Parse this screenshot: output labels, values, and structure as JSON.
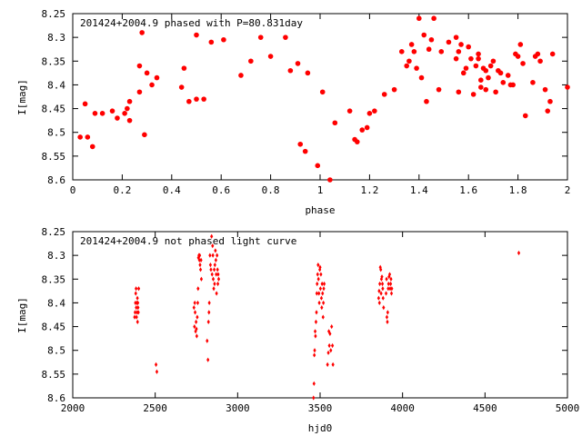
{
  "chart_data": [
    {
      "type": "scatter",
      "title": "201424+2004.9 phased with P=80.831day",
      "xlabel": "phase",
      "ylabel": "I[mag]",
      "xlim": [
        0,
        2
      ],
      "ylim": [
        8.25,
        8.6
      ],
      "y_inverted": true,
      "grid": false,
      "marker": "filled circle",
      "color": "#ff0000",
      "xticks": [
        "0",
        "0.2",
        "0.4",
        "0.6",
        "0.8",
        "1",
        "1.2",
        "1.4",
        "1.6",
        "1.8",
        "2"
      ],
      "yticks": [
        "8.25",
        "8.3",
        "8.35",
        "8.4",
        "8.45",
        "8.5",
        "8.55",
        "8.6"
      ],
      "series": [
        {
          "x": [
            0.03,
            0.05,
            0.06,
            0.08,
            0.09,
            0.12,
            0.16,
            0.18,
            0.21,
            0.22,
            0.23,
            0.23,
            0.27,
            0.27,
            0.28,
            0.29,
            0.3,
            0.32,
            0.34,
            0.44,
            0.45,
            0.47,
            0.5,
            0.5,
            0.53,
            0.56,
            0.61,
            0.68,
            0.72,
            0.76,
            0.8,
            0.86,
            0.88,
            0.91,
            0.92,
            0.94,
            0.95,
            0.99,
            1.01,
            1.04,
            1.06,
            1.12,
            1.14,
            1.15,
            1.17,
            1.19,
            1.2,
            1.22,
            1.26,
            1.3,
            1.33,
            1.35,
            1.36,
            1.37,
            1.38,
            1.39,
            1.4,
            1.41,
            1.42,
            1.43,
            1.44,
            1.45,
            1.46,
            1.48,
            1.49,
            1.52,
            1.55,
            1.55,
            1.56,
            1.56,
            1.57,
            1.58,
            1.59,
            1.6,
            1.61,
            1.62,
            1.63,
            1.64,
            1.64,
            1.65,
            1.65,
            1.66,
            1.67,
            1.67,
            1.68,
            1.69,
            1.7,
            1.71,
            1.72,
            1.73,
            1.74,
            1.76,
            1.77,
            1.78,
            1.79,
            1.8,
            1.81,
            1.82,
            1.83,
            1.86,
            1.87,
            1.88,
            1.89,
            1.91,
            1.92,
            1.93,
            1.94,
            2.0
          ],
          "y": [
            8.51,
            8.44,
            8.51,
            8.53,
            8.46,
            8.46,
            8.455,
            8.47,
            8.46,
            8.45,
            8.475,
            8.435,
            8.415,
            8.36,
            8.29,
            8.505,
            8.375,
            8.4,
            8.385,
            8.405,
            8.365,
            8.435,
            8.295,
            8.43,
            8.43,
            8.31,
            8.305,
            8.38,
            8.35,
            8.3,
            8.34,
            8.3,
            8.37,
            8.355,
            8.525,
            8.54,
            8.375,
            8.57,
            8.415,
            8.6,
            8.48,
            8.455,
            8.515,
            8.52,
            8.495,
            8.49,
            8.46,
            8.455,
            8.42,
            8.41,
            8.33,
            8.36,
            8.35,
            8.315,
            8.33,
            8.365,
            8.26,
            8.385,
            8.295,
            8.435,
            8.325,
            8.305,
            8.26,
            8.41,
            8.33,
            8.31,
            8.3,
            8.345,
            8.33,
            8.415,
            8.315,
            8.375,
            8.365,
            8.32,
            8.345,
            8.42,
            8.36,
            8.345,
            8.335,
            8.39,
            8.405,
            8.365,
            8.41,
            8.37,
            8.385,
            8.36,
            8.35,
            8.415,
            8.37,
            8.375,
            8.395,
            8.38,
            8.4,
            8.4,
            8.335,
            8.34,
            8.315,
            8.355,
            8.465,
            8.395,
            8.34,
            8.335,
            8.35,
            8.41,
            8.455,
            8.435,
            8.335,
            8.405
          ]
        }
      ]
    },
    {
      "type": "scatter",
      "title": "201424+2004.9 not phased light curve",
      "xlabel": "hjd0",
      "ylabel": "I[mag]",
      "xlim": [
        2000,
        5000
      ],
      "ylim": [
        8.25,
        8.6
      ],
      "y_inverted": true,
      "grid": false,
      "marker": "small diamond",
      "color": "#ff0000",
      "xticks": [
        "2000",
        "2500",
        "3000",
        "3500",
        "4000",
        "4500",
        "5000"
      ],
      "yticks": [
        "8.25",
        "8.3",
        "8.35",
        "8.4",
        "8.45",
        "8.5",
        "8.55",
        "8.6"
      ],
      "series": [
        {
          "x": [
            2375,
            2378,
            2380,
            2382,
            2384,
            2385,
            2387,
            2389,
            2390,
            2392,
            2393,
            2395,
            2396,
            2398,
            2400,
            2505,
            2510,
            2735,
            2738,
            2740,
            2742,
            2745,
            2748,
            2750,
            2752,
            2755,
            2758,
            2760,
            2762,
            2765,
            2768,
            2770,
            2772,
            2775,
            2778,
            2780,
            2815,
            2820,
            2823,
            2826,
            2828,
            2832,
            2835,
            2838,
            2842,
            2845,
            2848,
            2850,
            2852,
            2855,
            2858,
            2860,
            2862,
            2865,
            2868,
            2870,
            2872,
            2875,
            2878,
            2880,
            2882,
            2885,
            3460,
            3463,
            3465,
            3467,
            3470,
            3472,
            3475,
            3478,
            3480,
            3482,
            3485,
            3488,
            3490,
            3493,
            3495,
            3498,
            3500,
            3502,
            3505,
            3508,
            3510,
            3512,
            3515,
            3518,
            3520,
            3522,
            3525,
            3545,
            3550,
            3553,
            3556,
            3560,
            3565,
            3570,
            3575,
            3578,
            3855,
            3858,
            3860,
            3862,
            3865,
            3868,
            3870,
            3872,
            3875,
            3878,
            3880,
            3882,
            3885,
            3900,
            3903,
            3905,
            3908,
            3910,
            3913,
            3915,
            3918,
            3922,
            3925,
            3928,
            3930,
            3933,
            3935,
            4705
          ],
          "y": [
            8.43,
            8.42,
            8.4,
            8.38,
            8.37,
            8.41,
            8.43,
            8.4,
            8.42,
            8.39,
            8.44,
            8.4,
            8.41,
            8.42,
            8.37,
            8.53,
            8.545,
            8.41,
            8.45,
            8.4,
            8.42,
            8.46,
            8.44,
            8.455,
            8.47,
            8.43,
            8.4,
            8.37,
            8.305,
            8.3,
            8.31,
            8.3,
            8.32,
            8.33,
            8.31,
            8.35,
            8.48,
            8.52,
            8.44,
            8.42,
            8.4,
            8.3,
            8.32,
            8.33,
            8.26,
            8.34,
            8.28,
            8.3,
            8.35,
            8.37,
            8.33,
            8.36,
            8.32,
            8.29,
            8.31,
            8.34,
            8.38,
            8.3,
            8.33,
            8.36,
            8.34,
            8.35,
            8.6,
            8.57,
            8.51,
            8.5,
            8.46,
            8.47,
            8.44,
            8.42,
            8.38,
            8.36,
            8.34,
            8.32,
            8.35,
            8.38,
            8.4,
            8.33,
            8.325,
            8.37,
            8.34,
            8.39,
            8.41,
            8.36,
            8.38,
            8.43,
            8.4,
            8.37,
            8.36,
            8.53,
            8.505,
            8.46,
            8.49,
            8.465,
            8.5,
            8.45,
            8.49,
            8.53,
            8.39,
            8.375,
            8.4,
            8.36,
            8.325,
            8.33,
            8.38,
            8.35,
            8.345,
            8.36,
            8.37,
            8.39,
            8.41,
            8.38,
            8.35,
            8.43,
            8.44,
            8.42,
            8.37,
            8.36,
            8.345,
            8.34,
            8.37,
            8.36,
            8.35,
            8.38,
            8.37,
            8.295
          ]
        }
      ]
    }
  ]
}
